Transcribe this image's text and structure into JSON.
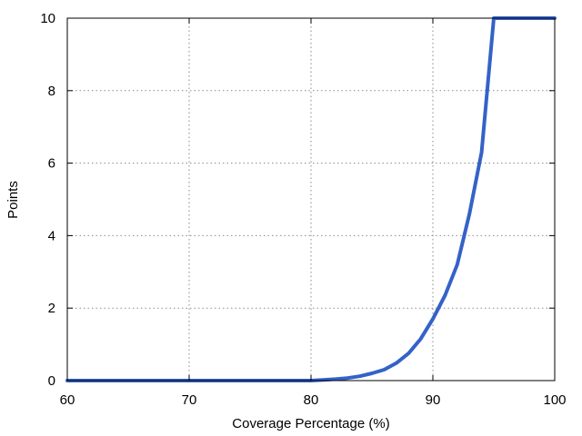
{
  "chart_data": {
    "type": "line",
    "title": "",
    "xlabel": "Coverage Percentage (%)",
    "ylabel": "Points",
    "xlim": [
      60,
      100
    ],
    "ylim": [
      0,
      10
    ],
    "x_ticks": [
      60,
      70,
      80,
      90,
      100
    ],
    "y_ticks": [
      0,
      2,
      4,
      6,
      8,
      10
    ],
    "grid": true,
    "legend": "none",
    "series": [
      {
        "color": "#3462c8",
        "x": [
          60,
          70,
          80,
          81,
          82,
          83,
          84,
          85,
          86,
          87,
          88,
          89,
          90,
          91,
          92,
          93,
          94,
          95,
          96,
          97,
          98,
          99,
          100
        ],
        "y": [
          0,
          0,
          0,
          0.02,
          0.04,
          0.07,
          0.12,
          0.2,
          0.3,
          0.48,
          0.75,
          1.15,
          1.7,
          2.35,
          3.2,
          4.6,
          6.3,
          10,
          10,
          10,
          10,
          10,
          10
        ]
      }
    ]
  }
}
